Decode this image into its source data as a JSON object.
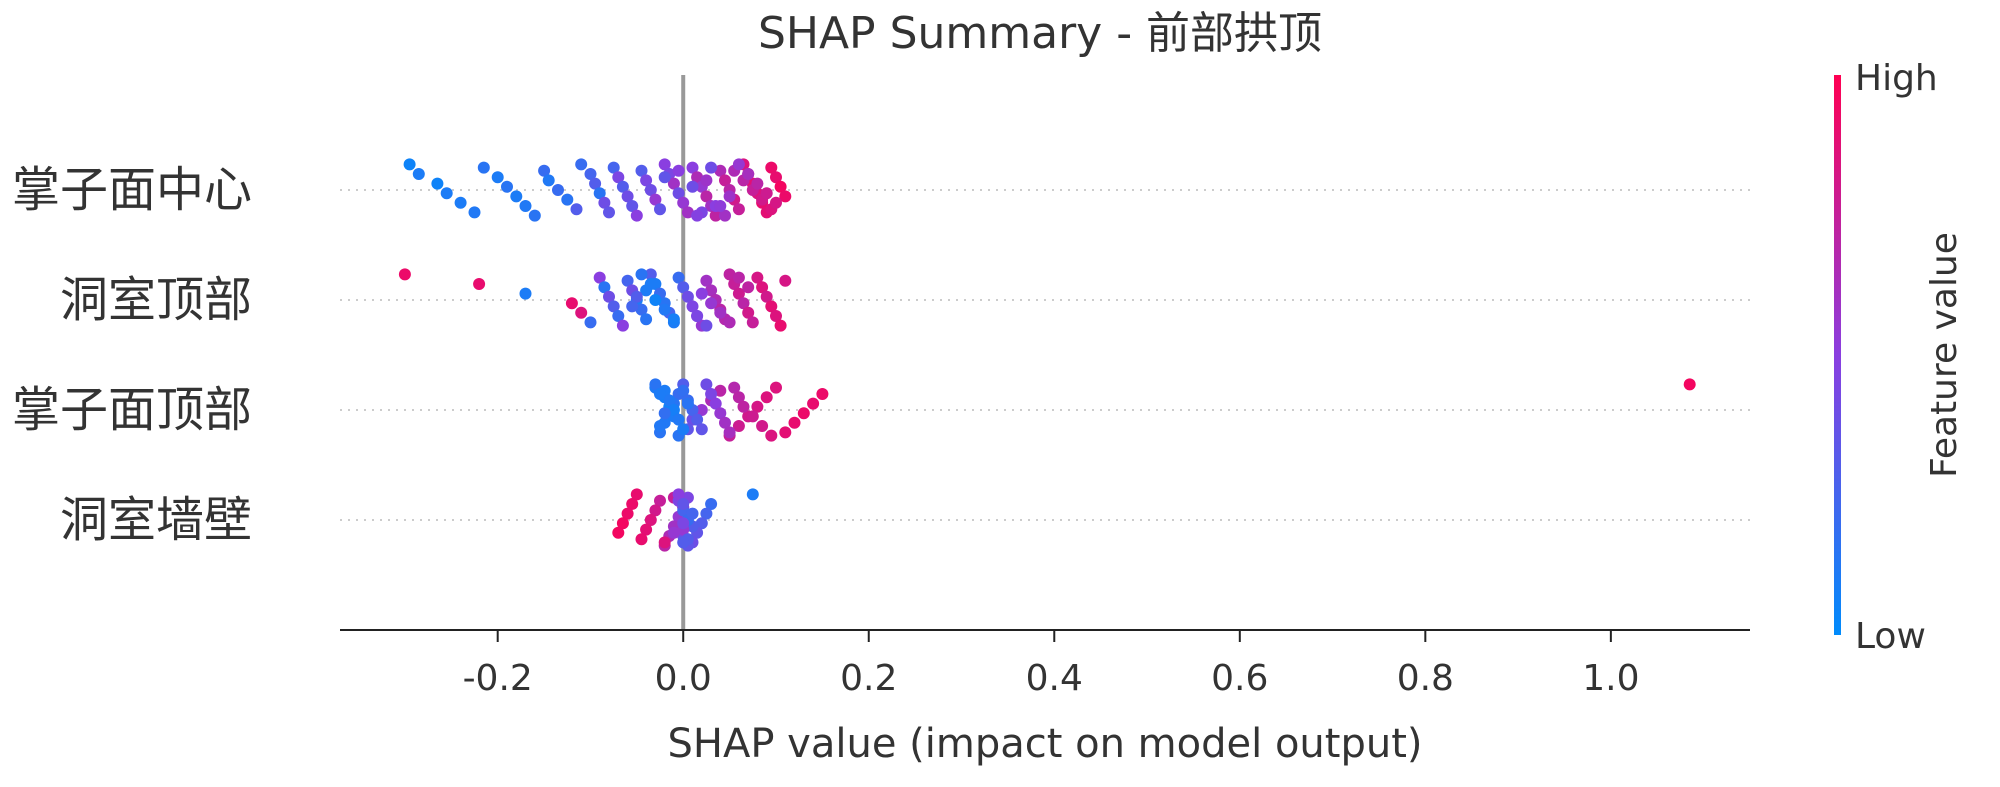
{
  "chart_data": {
    "type": "scatter",
    "subtype": "shap-beeswarm",
    "title": "SHAP Summary - 前部拱顶",
    "xlabel": "SHAP value (impact on model output)",
    "ylabel": "",
    "xlim": [
      -0.37,
      1.15
    ],
    "xticks": [
      -0.2,
      0.0,
      0.2,
      0.4,
      0.6,
      0.8,
      1.0
    ],
    "xtick_labels": [
      "-0.2",
      "0.0",
      "0.2",
      "0.4",
      "0.6",
      "0.8",
      "1.0"
    ],
    "features": [
      "掌子面中心",
      "洞室顶部",
      "掌子面顶部",
      "洞室墙壁"
    ],
    "colorbar": {
      "label": "Feature value",
      "high_label": "High",
      "low_label": "Low",
      "high_color": "#ff0052",
      "low_color": "#008bfb"
    },
    "zero_line": true,
    "series": [
      {
        "name": "掌子面中心",
        "points": [
          [
            -0.295,
            0.05
          ],
          [
            -0.285,
            0.1
          ],
          [
            -0.265,
            0.05
          ],
          [
            -0.255,
            0.1
          ],
          [
            -0.24,
            0.1
          ],
          [
            -0.225,
            0.12
          ],
          [
            -0.215,
            0.15
          ],
          [
            -0.2,
            0.1
          ],
          [
            -0.19,
            0.15
          ],
          [
            -0.18,
            0.1
          ],
          [
            -0.17,
            0.12
          ],
          [
            -0.16,
            0.15
          ],
          [
            -0.15,
            0.2
          ],
          [
            -0.145,
            0.12
          ],
          [
            -0.135,
            0.2
          ],
          [
            -0.125,
            0.15
          ],
          [
            -0.115,
            0.3
          ],
          [
            -0.11,
            0.2
          ],
          [
            -0.1,
            0.25
          ],
          [
            -0.095,
            0.3
          ],
          [
            -0.09,
            0.15
          ],
          [
            -0.085,
            0.4
          ],
          [
            -0.08,
            0.35
          ],
          [
            -0.075,
            0.25
          ],
          [
            -0.07,
            0.45
          ],
          [
            -0.065,
            0.3
          ],
          [
            -0.06,
            0.4
          ],
          [
            -0.055,
            0.35
          ],
          [
            -0.05,
            0.5
          ],
          [
            -0.045,
            0.3
          ],
          [
            -0.04,
            0.45
          ],
          [
            -0.035,
            0.4
          ],
          [
            -0.03,
            0.55
          ],
          [
            -0.025,
            0.35
          ],
          [
            -0.02,
            0.5
          ],
          [
            -0.015,
            0.45
          ],
          [
            -0.01,
            0.6
          ],
          [
            -0.005,
            0.4
          ],
          [
            0.0,
            0.55
          ],
          [
            0.005,
            0.6
          ],
          [
            0.01,
            0.5
          ],
          [
            0.015,
            0.65
          ],
          [
            0.02,
            0.55
          ],
          [
            0.025,
            0.7
          ],
          [
            0.03,
            0.6
          ],
          [
            0.035,
            0.72
          ],
          [
            0.04,
            0.65
          ],
          [
            0.045,
            0.75
          ],
          [
            0.05,
            0.7
          ],
          [
            0.055,
            0.8
          ],
          [
            0.06,
            0.75
          ],
          [
            0.065,
            0.85
          ],
          [
            0.07,
            0.8
          ],
          [
            0.075,
            0.88
          ],
          [
            0.08,
            0.85
          ],
          [
            0.085,
            0.9
          ],
          [
            0.09,
            0.88
          ],
          [
            0.095,
            0.92
          ],
          [
            0.1,
            0.9
          ],
          [
            0.105,
            0.95
          ],
          [
            0.11,
            0.92
          ],
          [
            0.035,
            0.5
          ],
          [
            0.045,
            0.6
          ],
          [
            0.055,
            0.65
          ],
          [
            0.065,
            0.7
          ],
          [
            0.075,
            0.75
          ],
          [
            0.085,
            0.8
          ],
          [
            0.095,
            0.85
          ],
          [
            0.06,
            0.55
          ],
          [
            0.07,
            0.62
          ],
          [
            0.08,
            0.7
          ],
          [
            0.09,
            0.78
          ],
          [
            0.1,
            0.82
          ],
          [
            0.02,
            0.45
          ],
          [
            0.03,
            0.4
          ],
          [
            -0.02,
            0.35
          ],
          [
            0.01,
            0.4
          ],
          [
            0.05,
            0.58
          ],
          [
            0.04,
            0.52
          ],
          [
            0.015,
            0.48
          ],
          [
            -0.005,
            0.5
          ],
          [
            0.025,
            0.58
          ]
        ]
      },
      {
        "name": "洞室顶部",
        "points": [
          [
            -0.3,
            0.92
          ],
          [
            -0.22,
            0.9
          ],
          [
            -0.17,
            0.1
          ],
          [
            -0.12,
            0.9
          ],
          [
            -0.11,
            0.85
          ],
          [
            -0.1,
            0.2
          ],
          [
            -0.09,
            0.5
          ],
          [
            -0.085,
            0.15
          ],
          [
            -0.08,
            0.4
          ],
          [
            -0.075,
            0.3
          ],
          [
            -0.07,
            0.2
          ],
          [
            -0.065,
            0.5
          ],
          [
            -0.06,
            0.25
          ],
          [
            -0.055,
            0.4
          ],
          [
            -0.05,
            0.1
          ],
          [
            -0.045,
            0.2
          ],
          [
            -0.04,
            0.15
          ],
          [
            -0.035,
            0.3
          ],
          [
            -0.03,
            0.1
          ],
          [
            -0.025,
            0.2
          ],
          [
            -0.02,
            0.15
          ],
          [
            -0.015,
            0.25
          ],
          [
            -0.01,
            0.1
          ],
          [
            -0.005,
            0.2
          ],
          [
            0.0,
            0.3
          ],
          [
            0.005,
            0.4
          ],
          [
            0.01,
            0.45
          ],
          [
            0.015,
            0.5
          ],
          [
            0.02,
            0.55
          ],
          [
            0.025,
            0.6
          ],
          [
            0.03,
            0.62
          ],
          [
            0.035,
            0.65
          ],
          [
            0.04,
            0.7
          ],
          [
            0.045,
            0.68
          ],
          [
            0.05,
            0.72
          ],
          [
            0.055,
            0.75
          ],
          [
            0.06,
            0.78
          ],
          [
            0.065,
            0.7
          ],
          [
            0.07,
            0.8
          ],
          [
            0.075,
            0.75
          ],
          [
            0.08,
            0.82
          ],
          [
            0.085,
            0.85
          ],
          [
            0.09,
            0.8
          ],
          [
            0.095,
            0.88
          ],
          [
            0.1,
            0.85
          ],
          [
            0.105,
            0.9
          ],
          [
            0.11,
            0.82
          ],
          [
            -0.04,
            0.1
          ],
          [
            -0.03,
            0.05
          ],
          [
            -0.02,
            0.12
          ],
          [
            -0.01,
            0.08
          ],
          [
            -0.045,
            0.15
          ],
          [
            -0.035,
            0.1
          ],
          [
            0.02,
            0.5
          ],
          [
            0.03,
            0.55
          ],
          [
            0.04,
            0.6
          ],
          [
            0.05,
            0.65
          ],
          [
            0.06,
            0.7
          ],
          [
            0.07,
            0.72
          ],
          [
            -0.05,
            0.3
          ],
          [
            -0.055,
            0.25
          ],
          [
            0.015,
            0.45
          ],
          [
            0.025,
            0.4
          ]
        ]
      },
      {
        "name": "掌子面顶部",
        "points": [
          [
            1.085,
            0.95
          ],
          [
            0.15,
            0.92
          ],
          [
            0.14,
            0.9
          ],
          [
            0.13,
            0.92
          ],
          [
            0.12,
            0.9
          ],
          [
            0.11,
            0.88
          ],
          [
            0.1,
            0.85
          ],
          [
            0.09,
            0.85
          ],
          [
            0.08,
            0.82
          ],
          [
            0.07,
            0.8
          ],
          [
            0.06,
            0.78
          ],
          [
            0.05,
            0.75
          ],
          [
            0.04,
            0.7
          ],
          [
            0.03,
            0.65
          ],
          [
            0.02,
            0.55
          ],
          [
            0.01,
            0.4
          ],
          [
            0.005,
            0.35
          ],
          [
            0.0,
            0.3
          ],
          [
            -0.005,
            0.2
          ],
          [
            -0.01,
            0.15
          ],
          [
            -0.015,
            0.1
          ],
          [
            -0.02,
            0.12
          ],
          [
            -0.025,
            0.15
          ],
          [
            -0.03,
            0.1
          ],
          [
            -0.02,
            0.08
          ],
          [
            -0.015,
            0.05
          ],
          [
            -0.01,
            0.1
          ],
          [
            -0.025,
            0.12
          ],
          [
            -0.005,
            0.15
          ],
          [
            0.0,
            0.18
          ],
          [
            0.005,
            0.2
          ],
          [
            0.01,
            0.25
          ],
          [
            0.015,
            0.3
          ],
          [
            0.02,
            0.35
          ],
          [
            0.025,
            0.4
          ],
          [
            0.03,
            0.45
          ],
          [
            0.035,
            0.5
          ],
          [
            0.04,
            0.55
          ],
          [
            0.045,
            0.6
          ],
          [
            0.05,
            0.62
          ],
          [
            0.055,
            0.68
          ],
          [
            0.06,
            0.7
          ],
          [
            0.065,
            0.72
          ],
          [
            0.075,
            0.78
          ],
          [
            0.085,
            0.8
          ],
          [
            0.095,
            0.84
          ],
          [
            -0.02,
            0.1
          ],
          [
            -0.015,
            0.12
          ],
          [
            -0.01,
            0.08
          ],
          [
            -0.005,
            0.12
          ],
          [
            0.0,
            0.1
          ],
          [
            -0.03,
            0.15
          ],
          [
            -0.025,
            0.1
          ],
          [
            0.005,
            0.15
          ],
          [
            -0.02,
            0.18
          ]
        ]
      },
      {
        "name": "洞室墙壁",
        "points": [
          [
            0.075,
            0.1
          ],
          [
            0.03,
            0.2
          ],
          [
            0.025,
            0.25
          ],
          [
            0.02,
            0.3
          ],
          [
            0.015,
            0.35
          ],
          [
            0.01,
            0.4
          ],
          [
            0.005,
            0.45
          ],
          [
            0.0,
            0.5
          ],
          [
            -0.005,
            0.55
          ],
          [
            -0.01,
            0.6
          ],
          [
            -0.015,
            0.65
          ],
          [
            -0.02,
            0.7
          ],
          [
            -0.025,
            0.75
          ],
          [
            -0.03,
            0.8
          ],
          [
            -0.035,
            0.85
          ],
          [
            -0.04,
            0.88
          ],
          [
            -0.045,
            0.9
          ],
          [
            -0.05,
            0.9
          ],
          [
            -0.055,
            0.92
          ],
          [
            -0.06,
            0.92
          ],
          [
            -0.065,
            0.95
          ],
          [
            -0.07,
            0.95
          ],
          [
            -0.02,
            0.85
          ],
          [
            -0.01,
            0.75
          ],
          [
            0.0,
            0.6
          ],
          [
            0.005,
            0.5
          ],
          [
            0.01,
            0.3
          ],
          [
            0.0,
            0.4
          ],
          [
            0.005,
            0.35
          ],
          [
            -0.005,
            0.45
          ],
          [
            0.0,
            0.25
          ],
          [
            0.005,
            0.2
          ],
          [
            0.0,
            0.55
          ],
          [
            0.005,
            0.3
          ],
          [
            -0.005,
            0.5
          ],
          [
            0.0,
            0.35
          ],
          [
            0.01,
            0.25
          ],
          [
            0.0,
            0.45
          ],
          [
            -0.01,
            0.55
          ],
          [
            0.0,
            0.3
          ]
        ]
      }
    ]
  }
}
